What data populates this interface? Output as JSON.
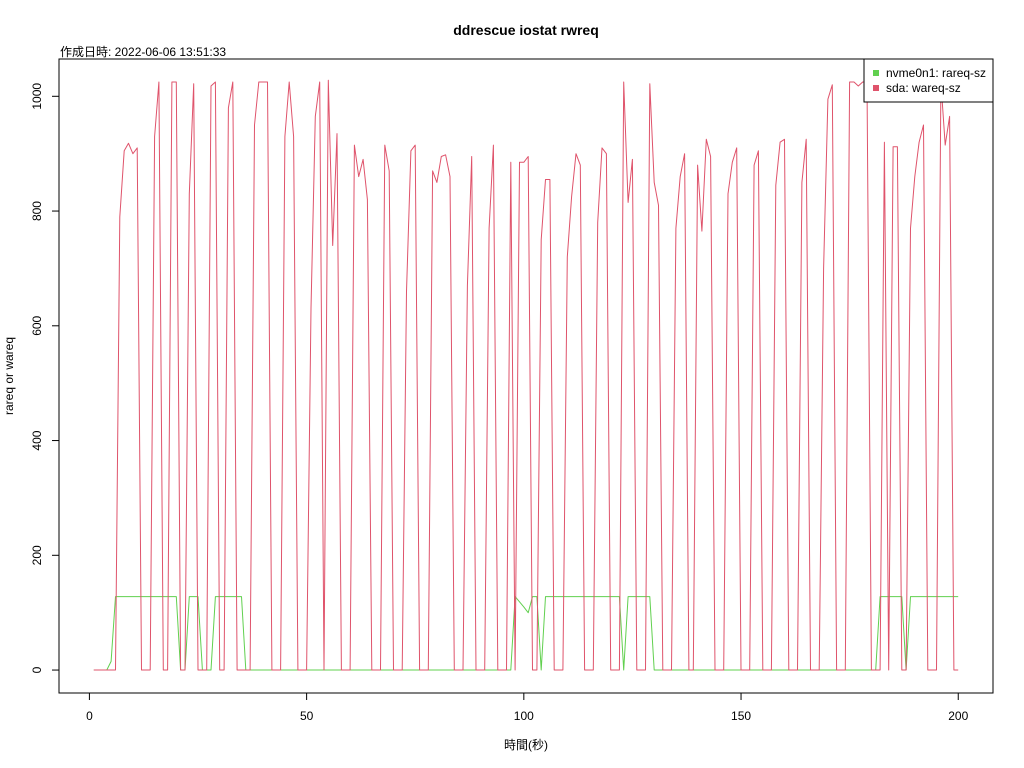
{
  "chart_data": {
    "type": "line",
    "title": "ddrescue iostat rwreq",
    "subtitle": "作成日時: 2022-06-06 13:51:33",
    "xlabel": "時間(秒)",
    "ylabel": "rareq or wareq",
    "xlim": [
      -7,
      208
    ],
    "ylim": [
      -40,
      1065
    ],
    "xticks": [
      0,
      50,
      100,
      150,
      200
    ],
    "yticks": [
      0,
      200,
      400,
      600,
      800,
      1000
    ],
    "grid": false,
    "legend_position": "top-right",
    "colors": {
      "nvme0n1": "#61d04f",
      "sda": "#df536b"
    },
    "series": [
      {
        "name": "nvme0n1: rareq-sz",
        "color": "#61d04f",
        "points": [
          [
            1,
            0
          ],
          [
            4,
            0
          ],
          [
            5,
            15
          ],
          [
            6,
            128
          ],
          [
            20,
            128
          ],
          [
            21,
            0
          ],
          [
            22,
            0
          ],
          [
            23,
            128
          ],
          [
            25,
            128
          ],
          [
            26,
            0
          ],
          [
            28,
            0
          ],
          [
            29,
            128
          ],
          [
            35,
            128
          ],
          [
            36,
            0
          ],
          [
            97,
            0
          ],
          [
            98,
            128
          ],
          [
            100,
            110
          ],
          [
            101,
            100
          ],
          [
            102,
            128
          ],
          [
            103,
            128
          ],
          [
            104,
            0
          ],
          [
            105,
            128
          ],
          [
            122,
            128
          ],
          [
            123,
            0
          ],
          [
            124,
            128
          ],
          [
            129,
            128
          ],
          [
            130,
            0
          ],
          [
            181,
            0
          ],
          [
            182,
            128
          ],
          [
            187,
            128
          ],
          [
            188,
            0
          ],
          [
            189,
            128
          ],
          [
            200,
            128
          ]
        ]
      },
      {
        "name": "sda: wareq-sz",
        "color": "#df536b",
        "points": [
          [
            1,
            0
          ],
          [
            6,
            0
          ],
          [
            7,
            790
          ],
          [
            8,
            905
          ],
          [
            9,
            918
          ],
          [
            10,
            900
          ],
          [
            11,
            910
          ],
          [
            12,
            0
          ],
          [
            14,
            0
          ],
          [
            15,
            930
          ],
          [
            16,
            1025
          ],
          [
            17,
            0
          ],
          [
            18,
            0
          ],
          [
            19,
            1025
          ],
          [
            20,
            1025
          ],
          [
            21,
            0
          ],
          [
            22,
            0
          ],
          [
            23,
            830
          ],
          [
            24,
            1022
          ],
          [
            25,
            0
          ],
          [
            27,
            0
          ],
          [
            28,
            1018
          ],
          [
            29,
            1025
          ],
          [
            30,
            0
          ],
          [
            31,
            0
          ],
          [
            32,
            980
          ],
          [
            33,
            1025
          ],
          [
            34,
            0
          ],
          [
            37,
            0
          ],
          [
            38,
            950
          ],
          [
            39,
            1025
          ],
          [
            41,
            1025
          ],
          [
            42,
            0
          ],
          [
            44,
            0
          ],
          [
            45,
            930
          ],
          [
            46,
            1025
          ],
          [
            47,
            930
          ],
          [
            48,
            0
          ],
          [
            50,
            0
          ],
          [
            51,
            630
          ],
          [
            52,
            965
          ],
          [
            53,
            1025
          ],
          [
            54,
            0
          ],
          [
            55,
            1028
          ],
          [
            56,
            740
          ],
          [
            57,
            935
          ],
          [
            58,
            0
          ],
          [
            60,
            0
          ],
          [
            61,
            915
          ],
          [
            62,
            860
          ],
          [
            63,
            890
          ],
          [
            64,
            820
          ],
          [
            65,
            0
          ],
          [
            67,
            0
          ],
          [
            68,
            915
          ],
          [
            69,
            870
          ],
          [
            70,
            0
          ],
          [
            72,
            0
          ],
          [
            73,
            660
          ],
          [
            74,
            905
          ],
          [
            75,
            915
          ],
          [
            76,
            0
          ],
          [
            78,
            0
          ],
          [
            79,
            870
          ],
          [
            80,
            850
          ],
          [
            81,
            895
          ],
          [
            82,
            898
          ],
          [
            83,
            860
          ],
          [
            84,
            0
          ],
          [
            86,
            0
          ],
          [
            87,
            670
          ],
          [
            88,
            895
          ],
          [
            89,
            0
          ],
          [
            91,
            0
          ],
          [
            92,
            770
          ],
          [
            93,
            915
          ],
          [
            94,
            0
          ],
          [
            96,
            0
          ],
          [
            97,
            885
          ],
          [
            98,
            0
          ],
          [
            99,
            885
          ],
          [
            100,
            885
          ],
          [
            101,
            895
          ],
          [
            102,
            0
          ],
          [
            103,
            0
          ],
          [
            104,
            750
          ],
          [
            105,
            855
          ],
          [
            106,
            855
          ],
          [
            107,
            0
          ],
          [
            109,
            0
          ],
          [
            110,
            720
          ],
          [
            111,
            825
          ],
          [
            112,
            900
          ],
          [
            113,
            880
          ],
          [
            114,
            0
          ],
          [
            116,
            0
          ],
          [
            117,
            780
          ],
          [
            118,
            910
          ],
          [
            119,
            900
          ],
          [
            120,
            0
          ],
          [
            122,
            0
          ],
          [
            123,
            1025
          ],
          [
            124,
            815
          ],
          [
            125,
            890
          ],
          [
            126,
            0
          ],
          [
            128,
            0
          ],
          [
            129,
            1022
          ],
          [
            130,
            850
          ],
          [
            131,
            810
          ],
          [
            132,
            0
          ],
          [
            134,
            0
          ],
          [
            135,
            770
          ],
          [
            136,
            860
          ],
          [
            137,
            900
          ],
          [
            138,
            0
          ],
          [
            139,
            0
          ],
          [
            140,
            880
          ],
          [
            141,
            765
          ],
          [
            142,
            925
          ],
          [
            143,
            895
          ],
          [
            144,
            0
          ],
          [
            146,
            0
          ],
          [
            147,
            830
          ],
          [
            148,
            885
          ],
          [
            149,
            910
          ],
          [
            150,
            0
          ],
          [
            152,
            0
          ],
          [
            153,
            880
          ],
          [
            154,
            905
          ],
          [
            155,
            0
          ],
          [
            157,
            0
          ],
          [
            158,
            845
          ],
          [
            159,
            920
          ],
          [
            160,
            925
          ],
          [
            161,
            0
          ],
          [
            163,
            0
          ],
          [
            164,
            850
          ],
          [
            165,
            925
          ],
          [
            166,
            0
          ],
          [
            168,
            0
          ],
          [
            169,
            700
          ],
          [
            170,
            995
          ],
          [
            171,
            1020
          ],
          [
            172,
            0
          ],
          [
            174,
            0
          ],
          [
            175,
            1025
          ],
          [
            176,
            1025
          ],
          [
            177,
            1018
          ],
          [
            178,
            1025
          ],
          [
            179,
            1025
          ],
          [
            180,
            0
          ],
          [
            182,
            0
          ],
          [
            183,
            920
          ],
          [
            184,
            0
          ],
          [
            185,
            912
          ],
          [
            186,
            912
          ],
          [
            187,
            0
          ],
          [
            188,
            0
          ],
          [
            189,
            770
          ],
          [
            190,
            860
          ],
          [
            191,
            920
          ],
          [
            192,
            950
          ],
          [
            193,
            0
          ],
          [
            195,
            0
          ],
          [
            196,
            1025
          ],
          [
            197,
            915
          ],
          [
            198,
            965
          ],
          [
            199,
            0
          ],
          [
            200,
            0
          ]
        ]
      }
    ]
  },
  "legend": {
    "items": [
      {
        "label": "nvme0n1: rareq-sz",
        "color": "#61d04f"
      },
      {
        "label": "sda: wareq-sz",
        "color": "#df536b"
      }
    ]
  }
}
